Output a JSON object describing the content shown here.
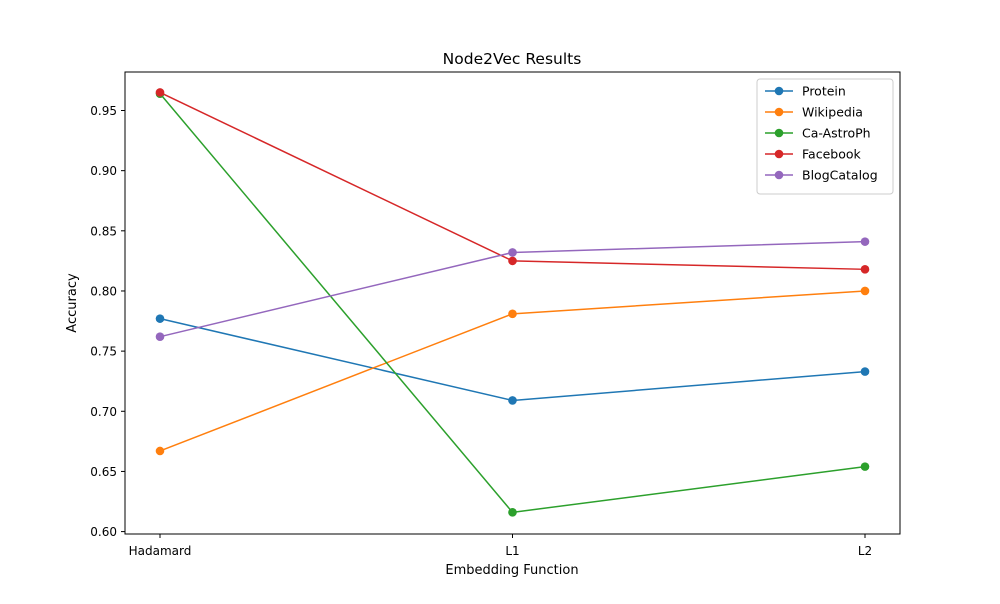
{
  "chart_data": {
    "type": "line",
    "title": "Node2Vec Results",
    "xlabel": "Embedding Function",
    "ylabel": "Accuracy",
    "categories": [
      "Hadamard",
      "L1",
      "L2"
    ],
    "ylim": [
      0.598,
      0.982
    ],
    "yticks": [
      "0.60",
      "0.65",
      "0.70",
      "0.75",
      "0.80",
      "0.85",
      "0.90",
      "0.95"
    ],
    "grid": false,
    "legend_position": "top-right",
    "markers": "circle",
    "series": [
      {
        "name": "Protein",
        "color": "#1f77b4",
        "values": [
          0.777,
          0.709,
          0.733
        ]
      },
      {
        "name": "Wikipedia",
        "color": "#ff7f0e",
        "values": [
          0.667,
          0.781,
          0.8
        ]
      },
      {
        "name": "Ca-AstroPh",
        "color": "#2ca02c",
        "values": [
          0.964,
          0.616,
          0.654
        ]
      },
      {
        "name": "Facebook",
        "color": "#d62728",
        "values": [
          0.965,
          0.825,
          0.818
        ]
      },
      {
        "name": "BlogCatalog",
        "color": "#9467bd",
        "values": [
          0.762,
          0.832,
          0.841
        ]
      }
    ]
  }
}
